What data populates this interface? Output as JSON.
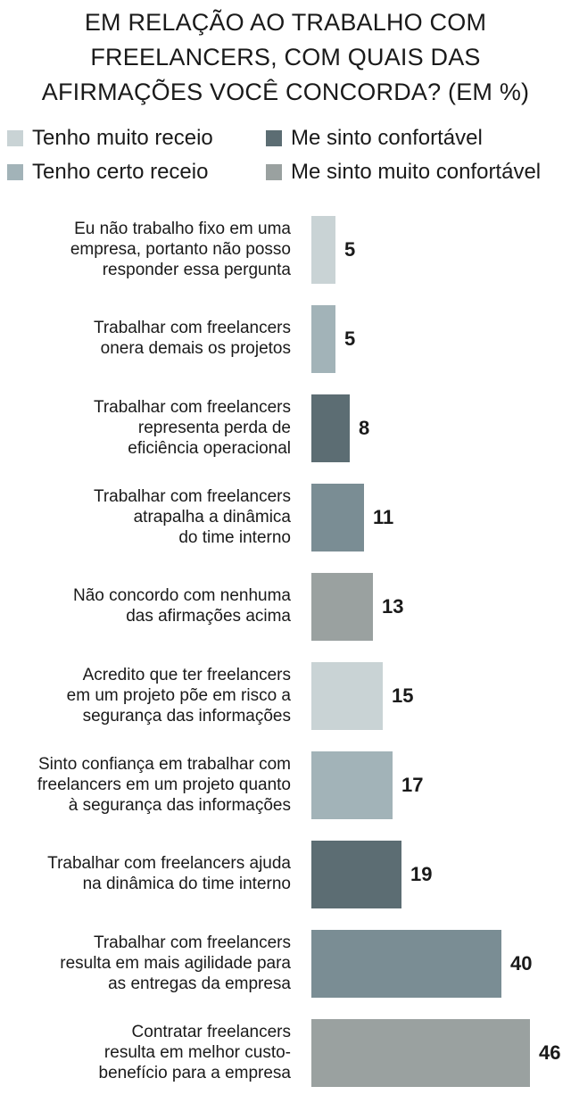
{
  "title_lines": [
    "EM RELAÇÃO AO TRABALHO COM",
    "FREELANCERS, COM QUAIS DAS",
    "AFIRMAÇÕES VOCÊ CONCORDA? (EM %)"
  ],
  "legend": [
    {
      "label": "Tenho muito receio",
      "color": "#c9d3d5"
    },
    {
      "label": "Me sinto confortável",
      "color": "#5c6d73"
    },
    {
      "label": "Tenho certo receio",
      "color": "#a2b3b8"
    },
    {
      "label": "Me sinto muito confortável",
      "color": "#9aa1a0"
    }
  ],
  "chart_data": {
    "type": "bar",
    "orientation": "horizontal",
    "title": "EM RELAÇÃO AO TRABALHO COM FREELANCERS, COM QUAIS DAS AFIRMAÇÕES VOCÊ CONCORDA? (EM %)",
    "categories": [
      [
        "Eu não trabalho fixo em uma",
        "empresa, portanto não posso",
        "responder essa pergunta"
      ],
      [
        "Trabalhar com freelancers",
        "onera demais os projetos"
      ],
      [
        "Trabalhar com freelancers",
        "representa perda de",
        "eficiência operacional"
      ],
      [
        "Trabalhar com freelancers",
        "atrapalha a dinâmica",
        "do time interno"
      ],
      [
        "Não concordo com nenhuma",
        "das afirmações acima"
      ],
      [
        "Acredito que ter freelancers",
        "em um projeto põe em risco a",
        "segurança das informações"
      ],
      [
        "Sinto confiança em trabalhar com",
        "freelancers em um projeto quanto",
        "à segurança das informações"
      ],
      [
        "Trabalhar com freelancers ajuda",
        "na dinâmica do time interno"
      ],
      [
        "Trabalhar com freelancers",
        "resulta em mais agilidade para",
        "as entregas da empresa"
      ],
      [
        "Contratar freelancers",
        "resulta em melhor custo-",
        "benefício para a empresa"
      ]
    ],
    "values": [
      5,
      5,
      8,
      11,
      13,
      15,
      17,
      19,
      40,
      46
    ],
    "colors": [
      "#c9d3d5",
      "#a2b3b8",
      "#5c6d73",
      "#7a8d94",
      "#9aa1a0",
      "#c9d3d5",
      "#a2b3b8",
      "#5c6d73",
      "#7a8d94",
      "#9aa1a0"
    ],
    "xlim": [
      0,
      46
    ]
  }
}
